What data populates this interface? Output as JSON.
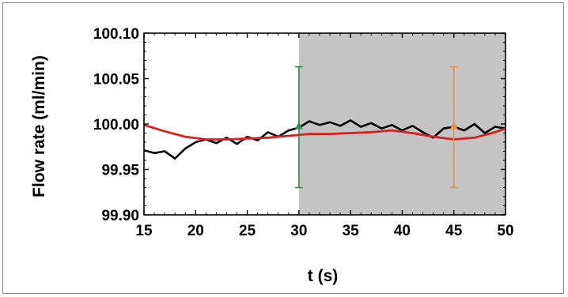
{
  "chart_data": {
    "type": "line",
    "title": "",
    "xlabel": "t (s)",
    "ylabel": "Flow rate (ml/min)",
    "xlim": [
      15,
      50
    ],
    "ylim": [
      99.9,
      100.1
    ],
    "x_ticks": [
      "15",
      "20",
      "25",
      "30",
      "35",
      "40",
      "45",
      "50"
    ],
    "y_ticks": [
      "99.90",
      "99.95",
      "100.00",
      "100.05",
      "100.10"
    ],
    "grid": false,
    "legend": "none",
    "shaded_region": {
      "x_start": 30,
      "x_end": 50,
      "color": "#c4c4c4"
    },
    "series": [
      {
        "color": "#000000",
        "x": [
          15,
          16,
          17,
          18,
          19,
          20,
          21,
          22,
          23,
          24,
          25,
          26,
          27,
          28,
          29,
          30,
          31,
          32,
          33,
          34,
          35,
          36,
          37,
          38,
          39,
          40,
          41,
          42,
          43,
          44,
          45,
          46,
          47,
          48,
          49,
          50
        ],
        "y": [
          99.971,
          99.968,
          99.97,
          99.962,
          99.973,
          99.98,
          99.983,
          99.979,
          99.985,
          99.978,
          99.986,
          99.982,
          99.991,
          99.986,
          99.993,
          99.996,
          100.003,
          99.999,
          100.002,
          99.998,
          100.004,
          99.997,
          100.001,
          99.995,
          99.999,
          99.993,
          99.998,
          99.991,
          99.985,
          99.995,
          99.997,
          99.993,
          100.0,
          99.99,
          99.997,
          99.995
        ]
      },
      {
        "color": "#d62020",
        "x": [
          15,
          17,
          19,
          21,
          23,
          25,
          27,
          29,
          31,
          33,
          35,
          37,
          39,
          41,
          43,
          45,
          47,
          49,
          50
        ],
        "y": [
          99.999,
          99.992,
          99.986,
          99.983,
          99.983,
          99.984,
          99.985,
          99.987,
          99.989,
          99.989,
          99.99,
          99.991,
          99.993,
          99.99,
          99.986,
          99.983,
          99.985,
          99.991,
          99.995
        ]
      }
    ],
    "error_bars": [
      {
        "x": 30,
        "y": 99.997,
        "low": 99.93,
        "high": 100.063,
        "color": "#2e8b4f"
      },
      {
        "x": 45,
        "y": 99.997,
        "low": 99.93,
        "high": 100.063,
        "color": "#ef8f2c"
      }
    ]
  }
}
